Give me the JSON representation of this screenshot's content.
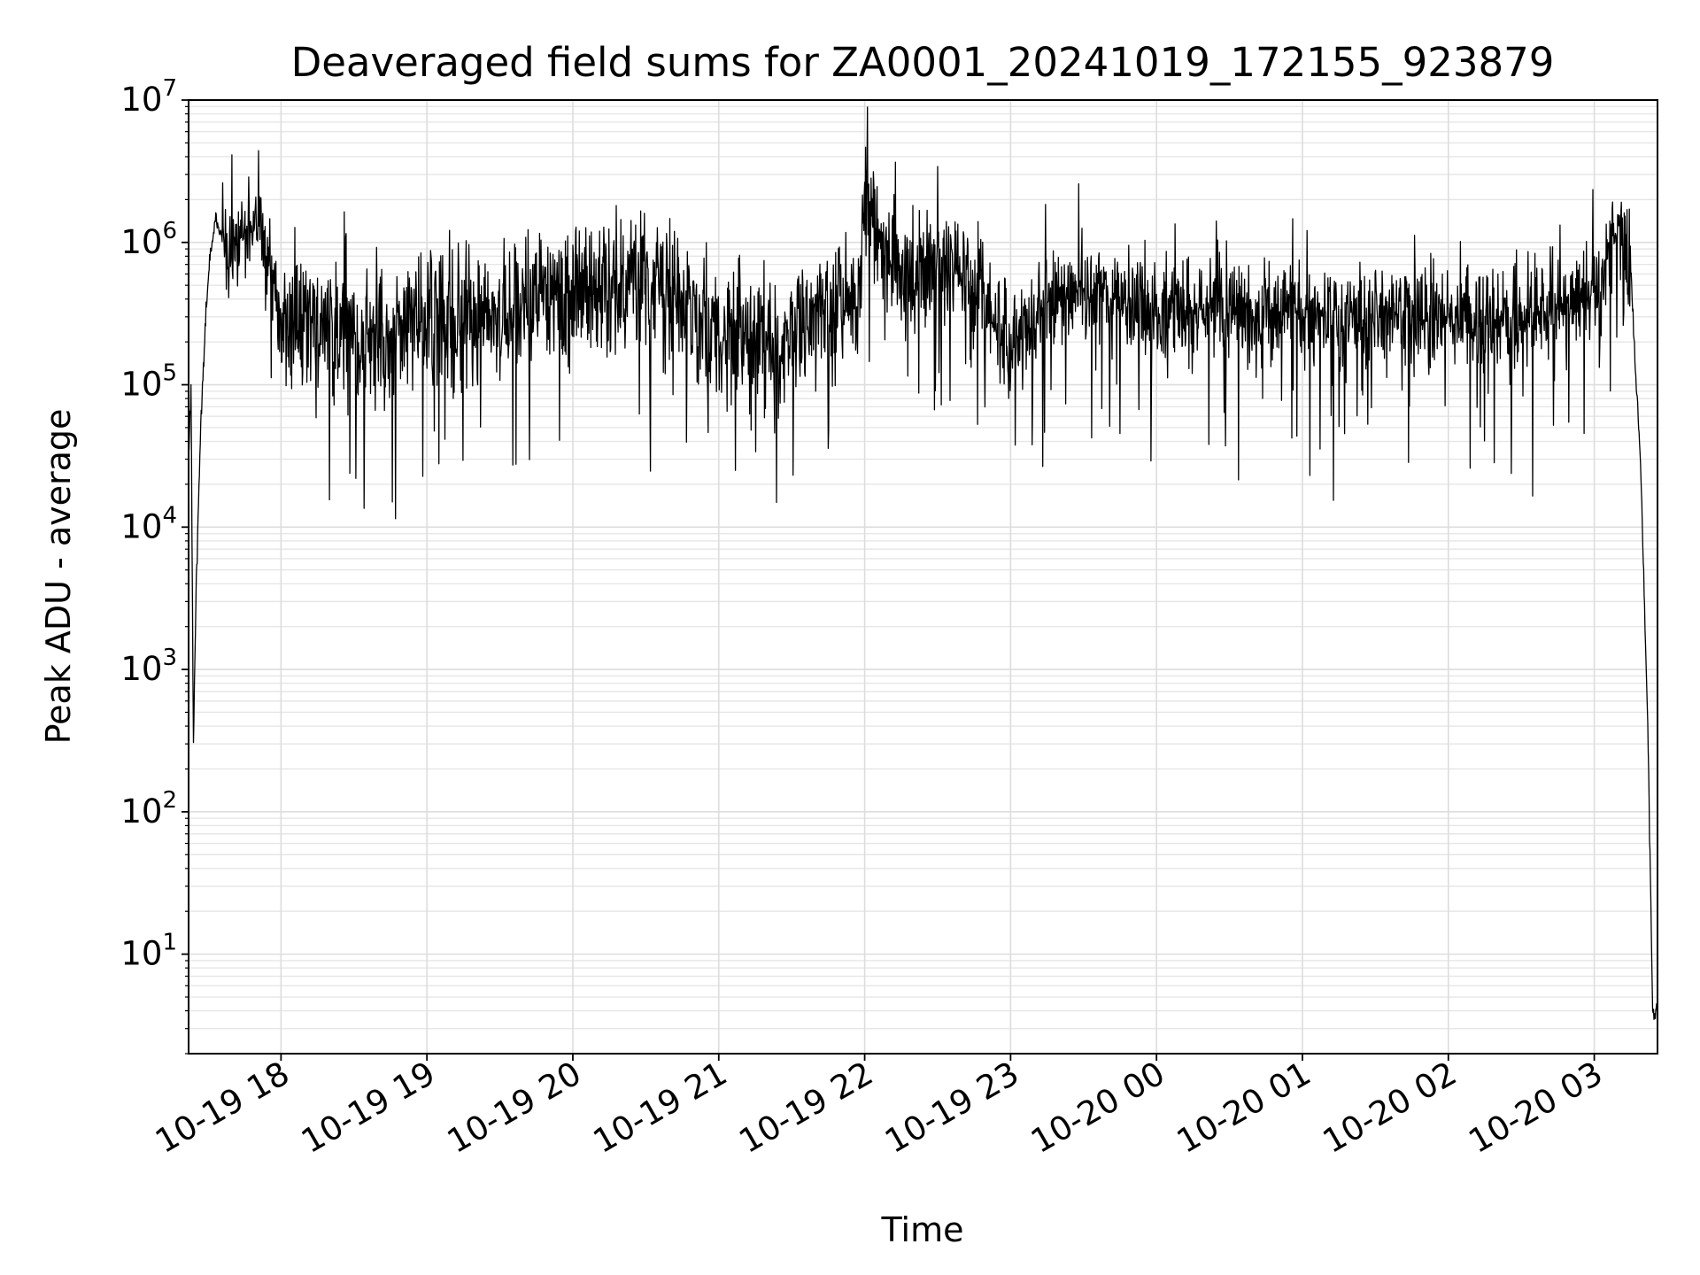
{
  "chart_data": {
    "type": "line",
    "title": "Deaveraged field sums for ZA0001_20241019_172155_923879",
    "xlabel": "Time",
    "ylabel": "Peak ADU - average",
    "yscale": "log",
    "xlim": [
      "2024-10-19 17:22",
      "2024-10-20 03:26"
    ],
    "ylim": [
      2,
      10000000
    ],
    "grid": true,
    "x_ticks": [
      {
        "value": "2024-10-19 18:00",
        "label": "10-19 18"
      },
      {
        "value": "2024-10-19 19:00",
        "label": "10-19 19"
      },
      {
        "value": "2024-10-19 20:00",
        "label": "10-19 20"
      },
      {
        "value": "2024-10-19 21:00",
        "label": "10-19 21"
      },
      {
        "value": "2024-10-19 22:00",
        "label": "10-19 22"
      },
      {
        "value": "2024-10-19 23:00",
        "label": "10-19 23"
      },
      {
        "value": "2024-10-20 00:00",
        "label": "10-20 00"
      },
      {
        "value": "2024-10-20 01:00",
        "label": "10-20 01"
      },
      {
        "value": "2024-10-20 02:00",
        "label": "10-20 02"
      },
      {
        "value": "2024-10-20 03:00",
        "label": "10-20 03"
      }
    ],
    "y_ticks": [
      {
        "value": 10,
        "base": "10",
        "exp": "1"
      },
      {
        "value": 100,
        "base": "10",
        "exp": "2"
      },
      {
        "value": 1000,
        "base": "10",
        "exp": "3"
      },
      {
        "value": 10000,
        "base": "10",
        "exp": "4"
      },
      {
        "value": 100000,
        "base": "10",
        "exp": "5"
      },
      {
        "value": 1000000,
        "base": "10",
        "exp": "6"
      },
      {
        "value": 10000000,
        "base": "10",
        "exp": "7"
      }
    ],
    "series": [
      {
        "color": "#000000",
        "points": [
          [
            "2024-10-19 17:22",
            30000
          ],
          [
            "2024-10-19 17:23",
            100000
          ],
          [
            "2024-10-19 17:24",
            300
          ],
          [
            "2024-10-19 17:25",
            3000
          ],
          [
            "2024-10-19 17:27",
            50000
          ],
          [
            "2024-10-19 17:29",
            300000
          ],
          [
            "2024-10-19 17:31",
            900000
          ],
          [
            "2024-10-19 17:33",
            1500000
          ],
          [
            "2024-10-19 17:36",
            1000000
          ],
          [
            "2024-10-19 17:40",
            800000
          ],
          [
            "2024-10-19 17:45",
            1200000
          ],
          [
            "2024-10-19 17:50",
            1400000
          ],
          [
            "2024-10-19 17:55",
            800000
          ],
          [
            "2024-10-19 18:00",
            300000
          ],
          [
            "2024-10-19 18:15",
            250000
          ],
          [
            "2024-10-19 18:30",
            250000
          ],
          [
            "2024-10-19 18:45",
            250000
          ],
          [
            "2024-10-19 19:00",
            280000
          ],
          [
            "2024-10-19 19:15",
            280000
          ],
          [
            "2024-10-19 19:30",
            300000
          ],
          [
            "2024-10-19 19:45",
            400000
          ],
          [
            "2024-10-19 20:00",
            500000
          ],
          [
            "2024-10-19 20:15",
            550000
          ],
          [
            "2024-10-19 20:30",
            500000
          ],
          [
            "2024-10-19 20:45",
            350000
          ],
          [
            "2024-10-19 21:00",
            220000
          ],
          [
            "2024-10-19 21:15",
            200000
          ],
          [
            "2024-10-19 21:30",
            220000
          ],
          [
            "2024-10-19 21:45",
            300000
          ],
          [
            "2024-10-19 21:58",
            400000
          ],
          [
            "2024-10-19 22:00",
            1800000
          ],
          [
            "2024-10-19 22:10",
            800000
          ],
          [
            "2024-10-19 22:20",
            550000
          ],
          [
            "2024-10-19 22:30",
            600000
          ],
          [
            "2024-10-19 22:40",
            700000
          ],
          [
            "2024-10-19 22:50",
            400000
          ],
          [
            "2024-10-19 23:00",
            200000
          ],
          [
            "2024-10-19 23:10",
            350000
          ],
          [
            "2024-10-19 23:20",
            400000
          ],
          [
            "2024-10-19 23:40",
            420000
          ],
          [
            "2024-10-20 00:00",
            350000
          ],
          [
            "2024-10-20 00:20",
            320000
          ],
          [
            "2024-10-20 00:40",
            300000
          ],
          [
            "2024-10-20 01:00",
            300000
          ],
          [
            "2024-10-20 01:20",
            280000
          ],
          [
            "2024-10-20 01:40",
            300000
          ],
          [
            "2024-10-20 02:00",
            280000
          ],
          [
            "2024-10-20 02:20",
            280000
          ],
          [
            "2024-10-20 02:40",
            320000
          ],
          [
            "2024-10-20 03:00",
            450000
          ],
          [
            "2024-10-20 03:10",
            1200000
          ],
          [
            "2024-10-20 03:15",
            600000
          ],
          [
            "2024-10-20 03:19",
            30000
          ],
          [
            "2024-10-20 03:22",
            400
          ],
          [
            "2024-10-20 03:24",
            4
          ],
          [
            "2024-10-20 03:26",
            4
          ]
        ]
      }
    ]
  }
}
